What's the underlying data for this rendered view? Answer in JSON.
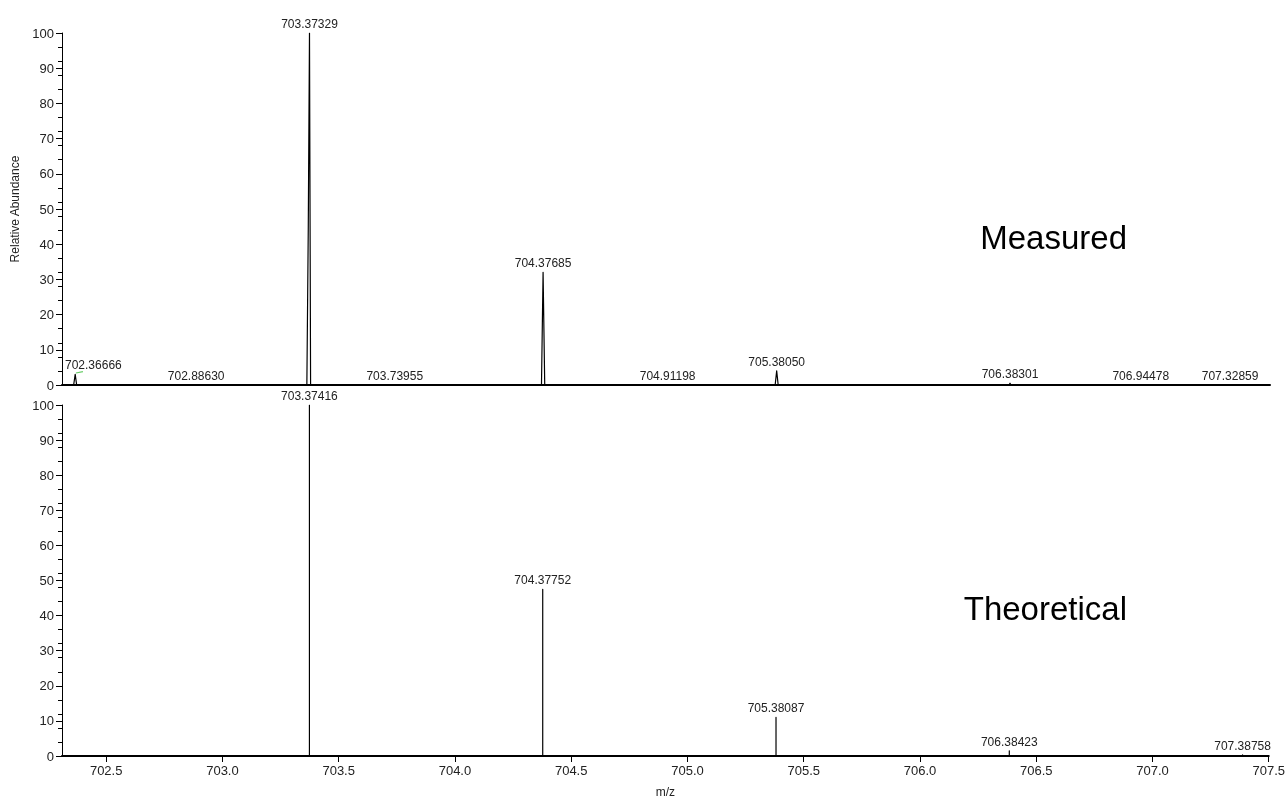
{
  "chart_data": [
    {
      "type": "line",
      "ylabel": "Relative Abundance",
      "xlim": [
        702.31,
        707.5
      ],
      "ylim": [
        0,
        100
      ],
      "yticks": [
        0,
        10,
        20,
        30,
        40,
        50,
        60,
        70,
        80,
        90,
        100
      ],
      "tick_labels": "y",
      "grid": false,
      "series": [
        {
          "color": "#000000",
          "x": [
            702.31,
            702.36,
            702.3667,
            702.373,
            703.362,
            703.368,
            703.3733,
            703.378,
            704.37,
            704.3769,
            704.384,
            705.374,
            705.3805,
            705.387,
            706.378,
            706.383,
            706.388,
            707.5
          ],
          "values": [
            0,
            0,
            3,
            0,
            0,
            44,
            100,
            0,
            0,
            32,
            0,
            0,
            4,
            0,
            0,
            0.5,
            0,
            0
          ]
        },
        {
          "color": "#66cc66",
          "x": [
            702.37,
            702.4
          ],
          "values": [
            3.4,
            3.8
          ]
        }
      ],
      "annotations": [
        {
          "text": "702.36666",
          "x": 702.36666,
          "y": 3
        },
        {
          "text": "702.88630",
          "x": 702.8863,
          "y": 0
        },
        {
          "text": "703.37329",
          "x": 703.37329,
          "y": 100
        },
        {
          "text": "703.73955",
          "x": 703.73955,
          "y": 0
        },
        {
          "text": "704.37685",
          "x": 704.37685,
          "y": 32
        },
        {
          "text": "704.91198",
          "x": 704.91198,
          "y": 0
        },
        {
          "text": "705.38050",
          "x": 705.3805,
          "y": 4
        },
        {
          "text": "706.38301",
          "x": 706.38301,
          "y": 0.5
        },
        {
          "text": "706.94478",
          "x": 706.94478,
          "y": 0
        },
        {
          "text": "707.32859",
          "x": 707.32859,
          "y": 0
        },
        "Measured"
      ]
    },
    {
      "type": "line",
      "xlabel": "m/z",
      "xlim": [
        702.31,
        707.5
      ],
      "xticks": [
        702.5,
        {
          "value": 703,
          "label": "703.0"
        },
        {
          "value": 703.5,
          "label": "703.5"
        },
        {
          "value": 704,
          "label": "704.0"
        },
        704.5,
        {
          "value": 705,
          "label": "705.0"
        },
        705.5,
        {
          "value": 706,
          "label": "706.0"
        },
        706.5,
        {
          "value": 707,
          "label": "707.0"
        },
        707.5
      ],
      "ylim": [
        0,
        100
      ],
      "yticks": [
        0,
        10,
        20,
        30,
        40,
        50,
        60,
        70,
        80,
        90,
        100
      ],
      "grid": false,
      "series": [
        {
          "color": "#000000",
          "x": [
            702.31,
            703.37416,
            703.37416,
            703.37416,
            704.37752,
            704.37752,
            704.37752,
            705.38087,
            705.38087,
            705.38087,
            706.38423,
            706.38423,
            706.38423,
            707.38758,
            707.38758,
            707.38758,
            707.5
          ],
          "values": [
            0,
            0,
            100,
            0,
            0,
            47.5,
            0,
            0,
            11,
            0,
            0,
            1.5,
            0,
            0,
            0.3,
            0,
            0
          ]
        }
      ],
      "annotations": [
        {
          "text": "703.37416",
          "x": 703.37416,
          "y": 100
        },
        {
          "text": "704.37752",
          "x": 704.37752,
          "y": 47.5
        },
        {
          "text": "705.38087",
          "x": 705.38087,
          "y": 11
        },
        {
          "text": "706.38423",
          "x": 706.38423,
          "y": 1.5
        },
        {
          "text": "707.38758",
          "x": 707.38758,
          "y": 0.3
        },
        "Theoretical"
      ]
    }
  ]
}
